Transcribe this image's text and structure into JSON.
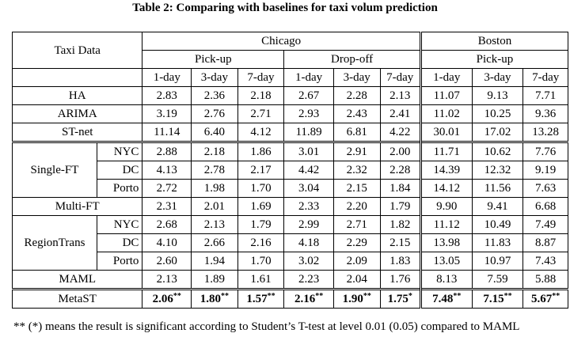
{
  "caption": "Table 2: Comparing with baselines for taxi volum prediction",
  "header": {
    "corner": "Taxi Data",
    "city1": "Chicago",
    "city2": "Boston",
    "pickup": "Pick-up",
    "dropoff": "Drop-off",
    "pickup2": "Pick-up",
    "days": [
      "1-day",
      "3-day",
      "7-day",
      "1-day",
      "3-day",
      "7-day",
      "1-day",
      "3-day",
      "7-day"
    ]
  },
  "rows": {
    "ha": {
      "name": "HA",
      "values": [
        "2.83",
        "2.36",
        "2.18",
        "2.67",
        "2.28",
        "2.13",
        "11.07",
        "9.13",
        "7.71"
      ]
    },
    "arima": {
      "name": "ARIMA",
      "values": [
        "3.19",
        "2.76",
        "2.71",
        "2.93",
        "2.43",
        "2.41",
        "11.02",
        "10.25",
        "9.36"
      ]
    },
    "stnet": {
      "name": "ST-net",
      "values": [
        "11.14",
        "6.40",
        "4.12",
        "11.89",
        "6.81",
        "4.22",
        "30.01",
        "17.02",
        "13.28"
      ]
    },
    "single_ft": {
      "name": "Single-FT",
      "subs": [
        {
          "name": "NYC",
          "values": [
            "2.88",
            "2.18",
            "1.86",
            "3.01",
            "2.91",
            "2.00",
            "11.71",
            "10.62",
            "7.76"
          ]
        },
        {
          "name": "DC",
          "values": [
            "4.13",
            "2.78",
            "2.17",
            "4.42",
            "2.32",
            "2.28",
            "14.39",
            "12.32",
            "9.19"
          ]
        },
        {
          "name": "Porto",
          "values": [
            "2.72",
            "1.98",
            "1.70",
            "3.04",
            "2.15",
            "1.84",
            "14.12",
            "11.56",
            "7.63"
          ]
        }
      ]
    },
    "multi_ft": {
      "name": "Multi-FT",
      "values": [
        "2.31",
        "2.01",
        "1.69",
        "2.33",
        "2.20",
        "1.79",
        "9.90",
        "9.41",
        "6.68"
      ]
    },
    "regiontrans": {
      "name": "RegionTrans",
      "subs": [
        {
          "name": "NYC",
          "values": [
            "2.68",
            "2.13",
            "1.79",
            "2.99",
            "2.71",
            "1.82",
            "11.12",
            "10.49",
            "7.49"
          ]
        },
        {
          "name": "DC",
          "values": [
            "4.10",
            "2.66",
            "2.16",
            "4.18",
            "2.29",
            "2.15",
            "13.98",
            "11.83",
            "8.87"
          ]
        },
        {
          "name": "Porto",
          "values": [
            "2.60",
            "1.94",
            "1.70",
            "3.02",
            "2.09",
            "1.83",
            "13.05",
            "10.97",
            "7.43"
          ]
        }
      ]
    },
    "maml": {
      "name": "MAML",
      "values": [
        "2.13",
        "1.89",
        "1.61",
        "2.23",
        "2.04",
        "1.76",
        "8.13",
        "7.59",
        "5.88"
      ]
    },
    "metast": {
      "name": "MetaST",
      "values": [
        "2.06",
        "1.80",
        "1.57",
        "2.16",
        "1.90",
        "1.75",
        "7.48",
        "7.15",
        "5.67"
      ],
      "marks": [
        "**",
        "**",
        "**",
        "**",
        "**",
        "*",
        "**",
        "**",
        "**"
      ]
    }
  },
  "footnote": "** (*) means the result is significant according to Student’s T-test at level 0.01 (0.05) compared to MAML"
}
